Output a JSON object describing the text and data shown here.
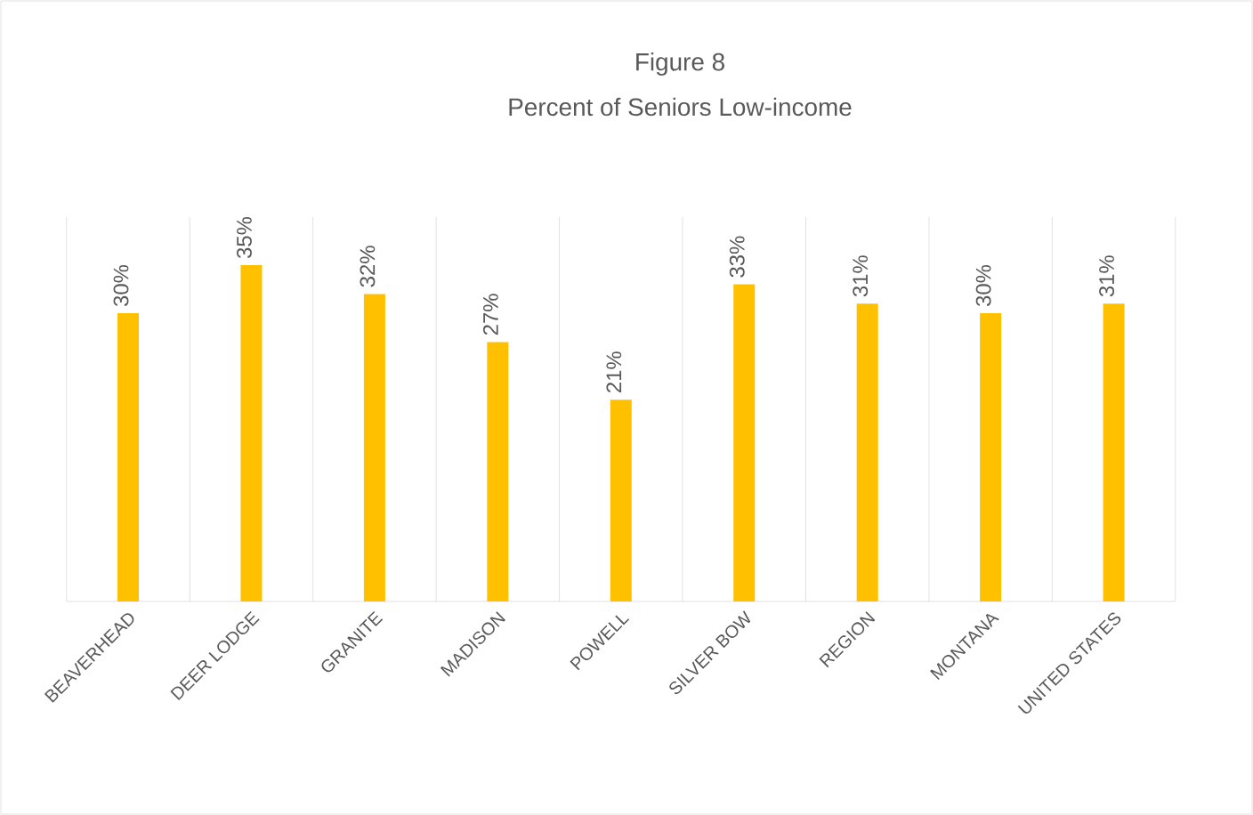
{
  "chart_data": {
    "type": "bar",
    "title": "Figure 8",
    "subtitle": "Percent of Seniors Low-income",
    "categories": [
      "BEAVERHEAD",
      "DEER LODGE",
      "GRANITE",
      "MADISON",
      "POWELL",
      "SILVER BOW",
      "REGION",
      "MONTANA",
      "UNITED STATES"
    ],
    "values": [
      30,
      35,
      32,
      27,
      21,
      33,
      31,
      30,
      31
    ],
    "value_labels": [
      "30%",
      "35%",
      "32%",
      "27%",
      "21%",
      "33%",
      "31%",
      "30%",
      "31%"
    ],
    "color": "#ffc000",
    "ylim": [
      0,
      40
    ],
    "grid": "x"
  }
}
